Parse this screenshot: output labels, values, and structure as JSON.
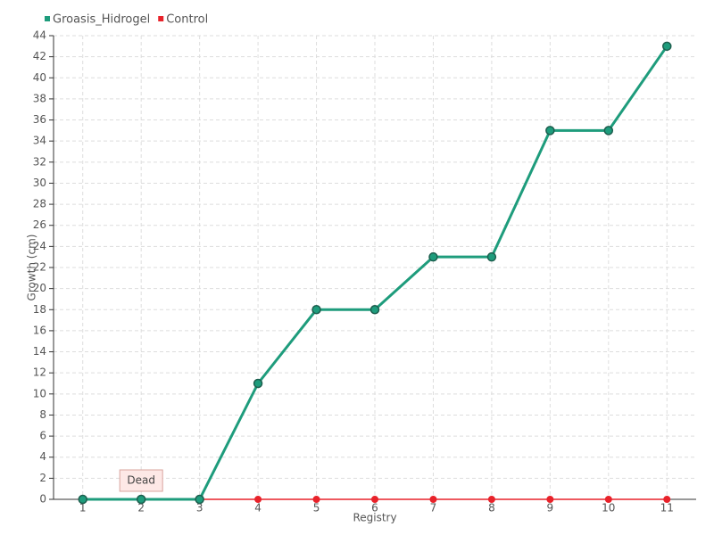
{
  "chart_data": {
    "type": "line",
    "x_label": "Registry",
    "y_label": "Growth (cm)",
    "categories": [
      "1",
      "2",
      "3",
      "4",
      "5",
      "6",
      "7",
      "8",
      "9",
      "10",
      "11"
    ],
    "series": [
      {
        "name": "Groasis_Hidrogel",
        "color": "#1e9c7c",
        "values": [
          0,
          0,
          0,
          11,
          18,
          18,
          23,
          23,
          35,
          35,
          43
        ]
      },
      {
        "name": "Control",
        "color": "#e8222a",
        "values": [
          0,
          0,
          0,
          0,
          0,
          0,
          0,
          0,
          0,
          0,
          0
        ]
      }
    ],
    "ylim": [
      0,
      44
    ],
    "yticks": [
      0,
      2,
      4,
      6,
      8,
      10,
      12,
      14,
      16,
      18,
      20,
      22,
      24,
      26,
      28,
      30,
      32,
      34,
      36,
      38,
      40,
      42,
      44
    ],
    "grid": true,
    "legend": "top-left",
    "annotations": [
      {
        "text": "Dead",
        "x": "2",
        "y": 0
      }
    ]
  }
}
